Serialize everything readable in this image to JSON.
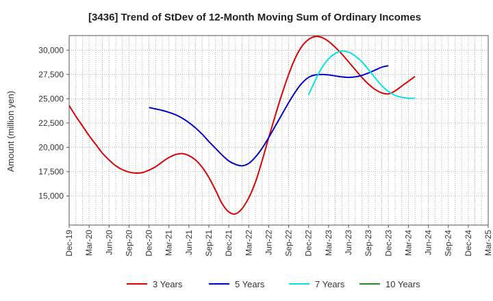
{
  "chart_data": {
    "type": "line",
    "title": "[3436]  Trend of StDev of 12-Month Moving Sum of Ordinary Incomes",
    "xlabel": "",
    "ylabel": "Amount (million yen)",
    "ylim": [
      12000,
      31500
    ],
    "yticks": [
      15000,
      17500,
      20000,
      22500,
      25000,
      27500,
      30000
    ],
    "ytick_labels": [
      "15,000",
      "17,500",
      "20,000",
      "22,500",
      "25,000",
      "27,500",
      "30,000"
    ],
    "x_categories": [
      "Dec-19",
      "Mar-20",
      "Jun-20",
      "Sep-20",
      "Dec-20",
      "Mar-21",
      "Jun-21",
      "Sep-21",
      "Dec-21",
      "Mar-22",
      "Jun-22",
      "Sep-22",
      "Dec-22",
      "Mar-23",
      "Jun-23",
      "Sep-23",
      "Dec-23",
      "Mar-24",
      "Jun-24",
      "Sep-24",
      "Dec-24",
      "Mar-25"
    ],
    "grid": true,
    "series": [
      {
        "name": "3 Years",
        "color": "#dd0000",
        "start_index": 0,
        "values": [
          24300,
          23200,
          22200,
          21200,
          20300,
          19400,
          18700,
          18100,
          17700,
          17450,
          17350,
          17400,
          17650,
          18000,
          18500,
          18950,
          19250,
          19350,
          19150,
          18700,
          17950,
          16900,
          15600,
          14200,
          13350,
          13150,
          13700,
          14800,
          16400,
          18600,
          21000,
          23300,
          25500,
          27500,
          29200,
          30400,
          31100,
          31400,
          31300,
          30900,
          30300,
          29600,
          28800,
          28000,
          27200,
          26500,
          25950,
          25600,
          25500,
          25800,
          26300,
          26800,
          27300
        ]
      },
      {
        "name": "5 Years",
        "color": "#0000cc",
        "start_index": 12,
        "values": [
          24100,
          23950,
          23800,
          23600,
          23350,
          23000,
          22550,
          22000,
          21350,
          20600,
          19900,
          19200,
          18600,
          18250,
          18100,
          18350,
          19000,
          19900,
          21000,
          22200,
          23400,
          24600,
          25700,
          26600,
          27200,
          27450,
          27500,
          27450,
          27350,
          27250,
          27200,
          27250,
          27400,
          27650,
          27950,
          28250,
          28400
        ]
      },
      {
        "name": "7 Years",
        "color": "#00e5e5",
        "start_index": 36,
        "values": [
          25400,
          26900,
          28200,
          29100,
          29650,
          29900,
          29800,
          29400,
          28800,
          28000,
          27150,
          26350,
          25750,
          25350,
          25150,
          25050,
          25050
        ]
      },
      {
        "name": "10 Years",
        "color": "#228822",
        "start_index": 0,
        "values": []
      }
    ],
    "legend": {
      "position": "bottom",
      "items": [
        {
          "label": "3 Years",
          "color": "#dd0000"
        },
        {
          "label": "5 Years",
          "color": "#0000cc"
        },
        {
          "label": "7 Years",
          "color": "#00e5e5"
        },
        {
          "label": "10 Years",
          "color": "#228822"
        }
      ]
    }
  }
}
